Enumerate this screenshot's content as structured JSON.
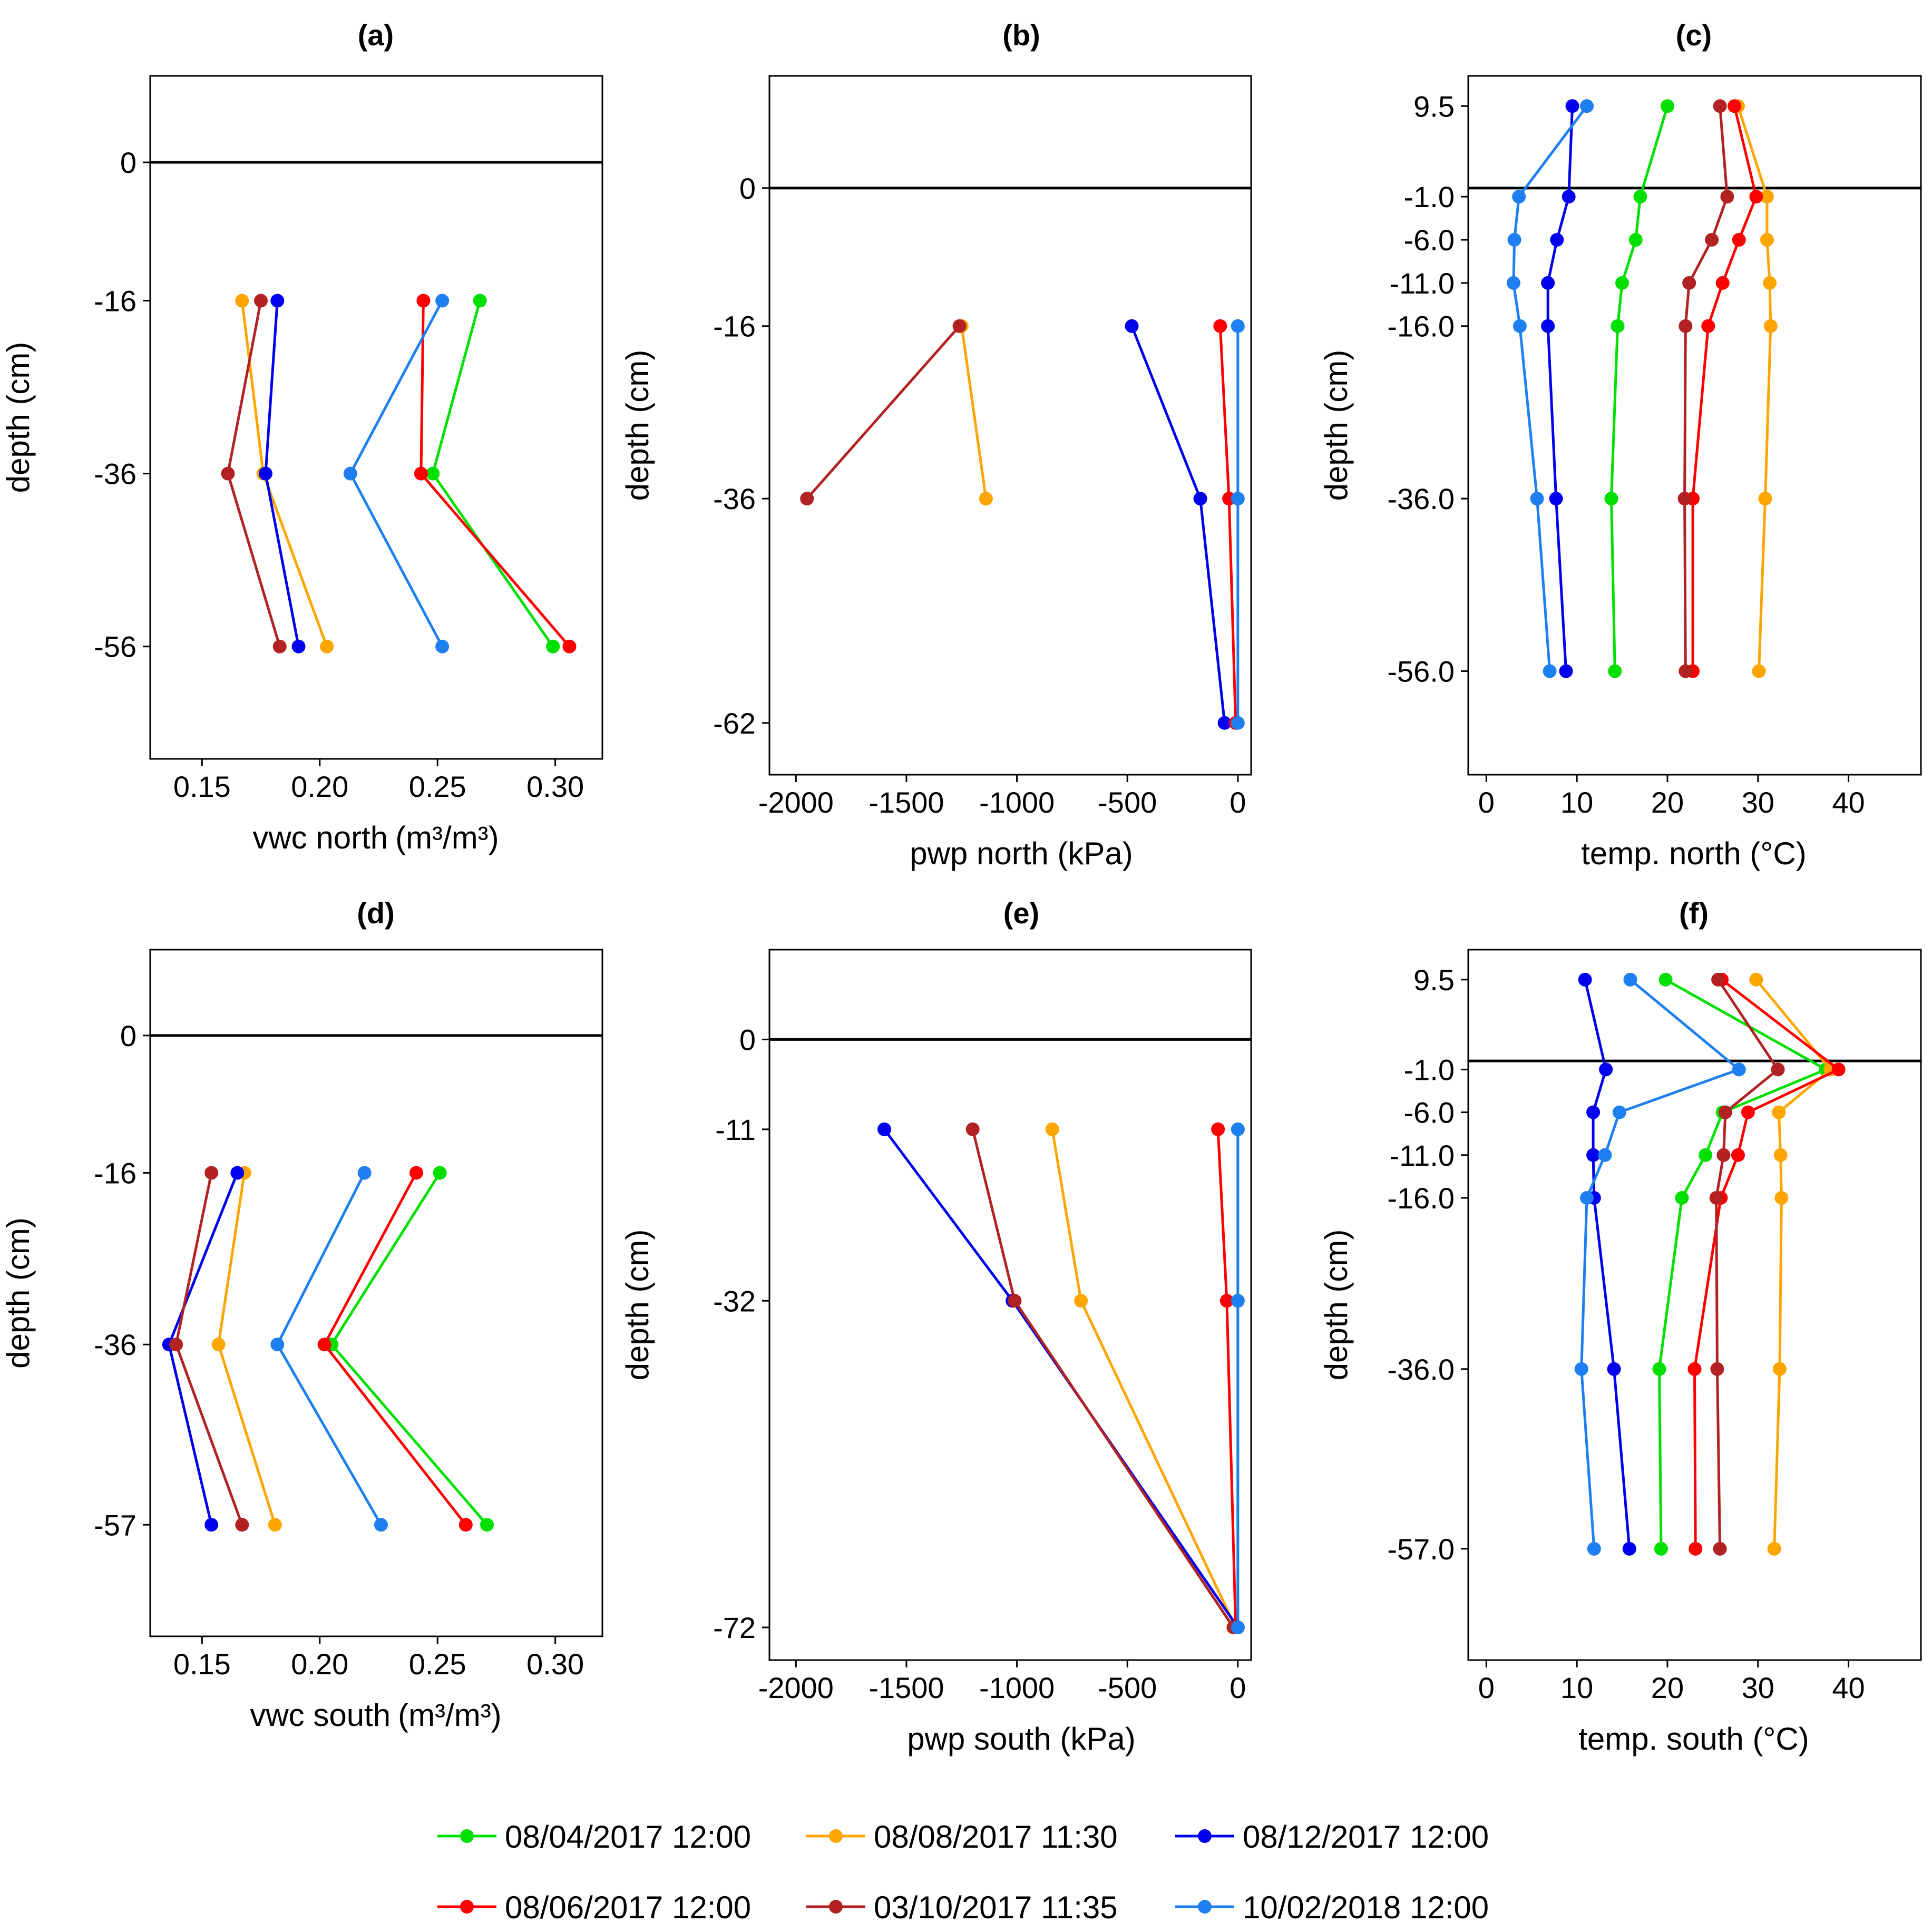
{
  "chart_data": [
    {
      "type": "line",
      "panel": "(a)",
      "xlabel": "vwc north",
      "xlabel_unit": "m³/m³",
      "ylabel": "depth (cm)",
      "xlim": [
        0.128,
        0.32
      ],
      "ylim": [
        -69,
        10
      ],
      "xticks": [
        0.15,
        0.2,
        0.25,
        0.3
      ],
      "xtick_labels": [
        "0.15",
        "0.20",
        "0.25",
        "0.30"
      ],
      "yticks": [
        0,
        -16,
        -36,
        -56
      ],
      "ytick_labels": [
        "0",
        "-16",
        "-36",
        "-56"
      ],
      "series": [
        {
          "name": "08/04/2017 12:00",
          "points": [
            [
              0.268,
              -16
            ],
            [
              0.248,
              -36
            ],
            [
              0.299,
              -56
            ]
          ]
        },
        {
          "name": "08/08/2017 11:30",
          "points": [
            [
              0.167,
              -16
            ],
            [
              0.176,
              -36
            ],
            [
              0.203,
              -56
            ]
          ]
        },
        {
          "name": "08/12/2017 12:00",
          "points": [
            [
              0.182,
              -16
            ],
            [
              0.177,
              -36
            ],
            [
              0.191,
              -56
            ]
          ]
        },
        {
          "name": "08/06/2017 12:00",
          "points": [
            [
              0.244,
              -16
            ],
            [
              0.243,
              -36
            ],
            [
              0.306,
              -56
            ]
          ]
        },
        {
          "name": "03/10/2017 11:35",
          "points": [
            [
              0.175,
              -16
            ],
            [
              0.161,
              -36
            ],
            [
              0.183,
              -56
            ]
          ]
        },
        {
          "name": "10/02/2018 12:00",
          "points": [
            [
              0.252,
              -16
            ],
            [
              0.213,
              -36
            ],
            [
              0.252,
              -56
            ]
          ]
        }
      ]
    },
    {
      "type": "line",
      "panel": "(b)",
      "xlabel": "pwp north (kPa)",
      "ylabel": "depth (cm)",
      "xlim": [
        -2120,
        60
      ],
      "ylim": [
        -68,
        13
      ],
      "xticks": [
        -2000,
        -1500,
        -1000,
        -500,
        0
      ],
      "xtick_labels": [
        "-2000",
        "-1500",
        "-1000",
        "-500",
        "0"
      ],
      "yticks": [
        0,
        -16,
        -36,
        -62
      ],
      "ytick_labels": [
        "0",
        "-16",
        "-36",
        "-62"
      ],
      "series": [
        {
          "name": "08/08/2017 11:30",
          "points": [
            [
              -1250,
              -16
            ],
            [
              -1140,
              -36
            ]
          ]
        },
        {
          "name": "08/12/2017 12:00",
          "points": [
            [
              -480,
              -16
            ],
            [
              -170,
              -36
            ],
            [
              -60,
              -62
            ]
          ]
        },
        {
          "name": "08/06/2017 12:00",
          "points": [
            [
              -80,
              -16
            ],
            [
              -40,
              -36
            ],
            [
              -10,
              -62
            ]
          ]
        },
        {
          "name": "03/10/2017 11:35",
          "points": [
            [
              -1260,
              -16
            ],
            [
              -1950,
              -36
            ]
          ]
        },
        {
          "name": "10/02/2018 12:00",
          "points": [
            [
              0,
              -16
            ],
            [
              0,
              -36
            ],
            [
              0,
              -62
            ]
          ]
        }
      ]
    },
    {
      "type": "line",
      "panel": "(c)",
      "xlabel": "temp. north (°C)",
      "ylabel": "depth (cm)",
      "xlim": [
        -2,
        48
      ],
      "ylim": [
        -68,
        13
      ],
      "xticks": [
        0,
        10,
        20,
        30,
        40
      ],
      "xtick_labels": [
        "0",
        "10",
        "20",
        "30",
        "40"
      ],
      "yticks": [
        9.5,
        -1,
        -6,
        -11,
        -16,
        -36,
        -56
      ],
      "ytick_labels": [
        "9.5",
        "-1.0",
        "-6.0",
        "-11.0",
        "-16.0",
        "-36.0",
        "-56.0"
      ],
      "series": [
        {
          "name": "08/04/2017 12:00",
          "points": [
            [
              20,
              9.5
            ],
            [
              17,
              -1
            ],
            [
              16.5,
              -6
            ],
            [
              15,
              -11
            ],
            [
              14.5,
              -16
            ],
            [
              13.8,
              -36
            ],
            [
              14.2,
              -56
            ]
          ]
        },
        {
          "name": "08/08/2017 11:30",
          "points": [
            [
              27.8,
              9.5
            ],
            [
              31,
              -1
            ],
            [
              31,
              -6
            ],
            [
              31.3,
              -11
            ],
            [
              31.4,
              -16
            ],
            [
              30.8,
              -36
            ],
            [
              30.1,
              -56
            ]
          ]
        },
        {
          "name": "08/12/2017 12:00",
          "points": [
            [
              9.5,
              9.5
            ],
            [
              9.1,
              -1
            ],
            [
              7.8,
              -6
            ],
            [
              6.8,
              -11
            ],
            [
              6.8,
              -16
            ],
            [
              7.7,
              -36
            ],
            [
              8.8,
              -56
            ]
          ]
        },
        {
          "name": "08/06/2017 12:00",
          "points": [
            [
              27.4,
              9.5
            ],
            [
              29.8,
              -1
            ],
            [
              27.9,
              -6
            ],
            [
              26.1,
              -11
            ],
            [
              24.5,
              -16
            ],
            [
              22.8,
              -36
            ],
            [
              22.8,
              -56
            ]
          ]
        },
        {
          "name": "03/10/2017 11:35",
          "points": [
            [
              25.8,
              9.5
            ],
            [
              26.6,
              -1
            ],
            [
              24.9,
              -6
            ],
            [
              22.4,
              -11
            ],
            [
              22.0,
              -16
            ],
            [
              21.9,
              -36
            ],
            [
              22.0,
              -56
            ]
          ]
        },
        {
          "name": "10/02/2018 12:00",
          "points": [
            [
              11.1,
              9.5
            ],
            [
              3.6,
              -1
            ],
            [
              3.1,
              -6
            ],
            [
              3.0,
              -11
            ],
            [
              3.7,
              -16
            ],
            [
              5.6,
              -36
            ],
            [
              7.0,
              -56
            ]
          ]
        }
      ]
    },
    {
      "type": "line",
      "panel": "(d)",
      "xlabel": "vwc south",
      "xlabel_unit": "m³/m³",
      "ylabel": "depth (cm)",
      "xlim": [
        0.128,
        0.32
      ],
      "ylim": [
        -70,
        10
      ],
      "xticks": [
        0.15,
        0.2,
        0.25,
        0.3
      ],
      "xtick_labels": [
        "0.15",
        "0.20",
        "0.25",
        "0.30"
      ],
      "yticks": [
        0,
        -16,
        -36,
        -57
      ],
      "ytick_labels": [
        "0",
        "-16",
        "-36",
        "-57"
      ],
      "series": [
        {
          "name": "08/04/2017 12:00",
          "points": [
            [
              0.251,
              -16
            ],
            [
              0.205,
              -36
            ],
            [
              0.271,
              -57
            ]
          ]
        },
        {
          "name": "08/08/2017 11:30",
          "points": [
            [
              0.168,
              -16
            ],
            [
              0.157,
              -36
            ],
            [
              0.181,
              -57
            ]
          ]
        },
        {
          "name": "08/12/2017 12:00",
          "points": [
            [
              0.165,
              -16
            ],
            [
              0.136,
              -36
            ],
            [
              0.154,
              -57
            ]
          ]
        },
        {
          "name": "08/06/2017 12:00",
          "points": [
            [
              0.241,
              -16
            ],
            [
              0.202,
              -36
            ],
            [
              0.262,
              -57
            ]
          ]
        },
        {
          "name": "03/10/2017 11:35",
          "points": [
            [
              0.154,
              -16
            ],
            [
              0.139,
              -36
            ],
            [
              0.167,
              -57
            ]
          ]
        },
        {
          "name": "10/02/2018 12:00",
          "points": [
            [
              0.219,
              -16
            ],
            [
              0.182,
              -36
            ],
            [
              0.226,
              -57
            ]
          ]
        }
      ]
    },
    {
      "type": "line",
      "panel": "(e)",
      "xlabel": "pwp south (kPa)",
      "ylabel": "depth (cm)",
      "xlim": [
        -2120,
        60
      ],
      "ylim": [
        -76,
        11
      ],
      "xticks": [
        -2000,
        -1500,
        -1000,
        -500,
        0
      ],
      "xtick_labels": [
        "-2000",
        "-1500",
        "-1000",
        "-500",
        "0"
      ],
      "yticks": [
        0,
        -11,
        -32,
        -72
      ],
      "ytick_labels": [
        "0",
        "-11",
        "-32",
        "-72"
      ],
      "series": [
        {
          "name": "08/04/2017 12:00",
          "points": [
            [
              0,
              -11
            ],
            [
              0,
              -32
            ],
            [
              0,
              -72
            ]
          ]
        },
        {
          "name": "08/08/2017 11:30",
          "points": [
            [
              -840,
              -11
            ],
            [
              -710,
              -32
            ],
            [
              -10,
              -72
            ]
          ]
        },
        {
          "name": "08/12/2017 12:00",
          "points": [
            [
              -1600,
              -11
            ],
            [
              -1020,
              -32
            ],
            [
              0,
              -72
            ]
          ]
        },
        {
          "name": "08/06/2017 12:00",
          "points": [
            [
              -90,
              -11
            ],
            [
              -50,
              -32
            ],
            [
              -10,
              -72
            ]
          ]
        },
        {
          "name": "03/10/2017 11:35",
          "points": [
            [
              -1200,
              -11
            ],
            [
              -1010,
              -32
            ],
            [
              -20,
              -72
            ]
          ]
        },
        {
          "name": "10/02/2018 12:00",
          "points": [
            [
              0,
              -11
            ],
            [
              0,
              -32
            ],
            [
              0,
              -72
            ]
          ]
        }
      ]
    },
    {
      "type": "line",
      "panel": "(f)",
      "xlabel": "temp. south (°C)",
      "ylabel": "depth (cm)",
      "xlim": [
        -2,
        48
      ],
      "ylim": [
        -70,
        13
      ],
      "xticks": [
        0,
        10,
        20,
        30,
        40
      ],
      "xtick_labels": [
        "0",
        "10",
        "20",
        "30",
        "40"
      ],
      "yticks": [
        9.5,
        -1,
        -6,
        -11,
        -16,
        -36,
        -57
      ],
      "ytick_labels": [
        "9.5",
        "-1.0",
        "-6.0",
        "-11.0",
        "-16.0",
        "-36.0",
        "-57.0"
      ],
      "series": [
        {
          "name": "08/04/2017 12:00",
          "points": [
            [
              19.8,
              9.5
            ],
            [
              37.5,
              -1
            ],
            [
              26.1,
              -6
            ],
            [
              24.2,
              -11
            ],
            [
              21.6,
              -16
            ],
            [
              19.1,
              -36
            ],
            [
              19.3,
              -57
            ]
          ]
        },
        {
          "name": "08/08/2017 11:30",
          "points": [
            [
              29.8,
              9.5
            ],
            [
              38.0,
              -1
            ],
            [
              32.3,
              -6
            ],
            [
              32.5,
              -11
            ],
            [
              32.6,
              -16
            ],
            [
              32.4,
              -36
            ],
            [
              31.8,
              -57
            ]
          ]
        },
        {
          "name": "08/12/2017 12:00",
          "points": [
            [
              10.9,
              9.5
            ],
            [
              13.2,
              -1
            ],
            [
              11.8,
              -6
            ],
            [
              11.8,
              -11
            ],
            [
              11.9,
              -16
            ],
            [
              14.1,
              -36
            ],
            [
              15.8,
              -57
            ]
          ]
        },
        {
          "name": "08/06/2017 12:00",
          "points": [
            [
              26.0,
              9.5
            ],
            [
              38.9,
              -1
            ],
            [
              28.9,
              -6
            ],
            [
              27.8,
              -11
            ],
            [
              25.9,
              -16
            ],
            [
              23.0,
              -36
            ],
            [
              23.1,
              -57
            ]
          ]
        },
        {
          "name": "03/10/2017 11:35",
          "points": [
            [
              25.6,
              9.5
            ],
            [
              32.2,
              -1
            ],
            [
              26.4,
              -6
            ],
            [
              26.2,
              -11
            ],
            [
              25.4,
              -16
            ],
            [
              25.5,
              -36
            ],
            [
              25.8,
              -57
            ]
          ]
        },
        {
          "name": "10/02/2018 12:00",
          "points": [
            [
              15.9,
              9.5
            ],
            [
              27.9,
              -1
            ],
            [
              14.7,
              -6
            ],
            [
              13.1,
              -11
            ],
            [
              11.1,
              -16
            ],
            [
              10.5,
              -36
            ],
            [
              11.9,
              -57
            ]
          ]
        }
      ]
    }
  ],
  "legend": {
    "placement": "bottom",
    "items": [
      {
        "label": "08/04/2017 12:00",
        "color": "#00e000"
      },
      {
        "label": "08/08/2017 11:30",
        "color": "#ffa500"
      },
      {
        "label": "08/12/2017 12:00",
        "color": "#0000ee"
      },
      {
        "label": "08/06/2017 12:00",
        "color": "#ff0000"
      },
      {
        "label": "03/10/2017 11:35",
        "color": "#b22222"
      },
      {
        "label": "10/02/2018 12:00",
        "color": "#1e7ff0"
      }
    ]
  },
  "reference_line_depth": 0
}
